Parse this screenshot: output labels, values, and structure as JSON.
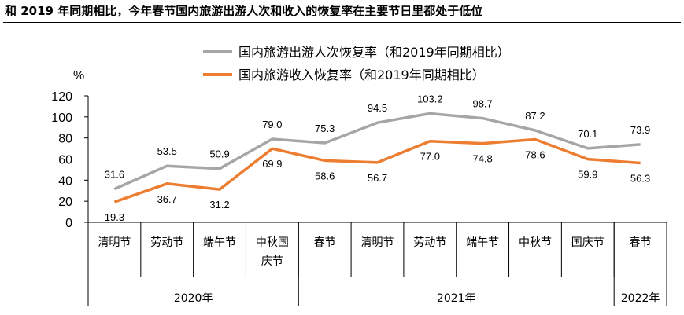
{
  "title": "和 2019 年同期相比，今年春节国内旅游出游人次和收入的恢复率在主要节日里都处于低位",
  "chart_data": {
    "type": "line",
    "ylabel": "%",
    "ylim": [
      0,
      120
    ],
    "yticks": [
      "0",
      "20",
      "40",
      "60",
      "80",
      "100",
      "120"
    ],
    "categories": [
      {
        "label": "清明节",
        "lines": [
          "清明节"
        ]
      },
      {
        "label": "劳动节",
        "lines": [
          "劳动节"
        ]
      },
      {
        "label": "端午节",
        "lines": [
          "端午节"
        ]
      },
      {
        "label": "中秋国庆节",
        "lines": [
          "中秋国",
          "庆节"
        ]
      },
      {
        "label": "春节",
        "lines": [
          "春节"
        ]
      },
      {
        "label": "清明节",
        "lines": [
          "清明节"
        ]
      },
      {
        "label": "劳动节",
        "lines": [
          "劳动节"
        ]
      },
      {
        "label": "端午节",
        "lines": [
          "端午节"
        ]
      },
      {
        "label": "中秋节",
        "lines": [
          "中秋节"
        ]
      },
      {
        "label": "国庆节",
        "lines": [
          "国庆节"
        ]
      },
      {
        "label": "春节",
        "lines": [
          "春节"
        ]
      }
    ],
    "groups": [
      {
        "label": "2020年",
        "start": 0,
        "end": 3
      },
      {
        "label": "2021年",
        "start": 4,
        "end": 9
      },
      {
        "label": "2022年",
        "start": 10,
        "end": 10
      }
    ],
    "series": [
      {
        "name": "国内旅游出游人次恢复率（和2019年同期相比）",
        "color": "#a6a6a6",
        "values": [
          31.6,
          53.5,
          50.9,
          79.0,
          75.3,
          94.5,
          103.2,
          98.7,
          87.2,
          70.1,
          73.9
        ],
        "labels": [
          "31.6",
          "53.5",
          "50.9",
          "79.0",
          "75.3",
          "94.5",
          "103.2",
          "98.7",
          "87.2",
          "70.1",
          "73.9"
        ],
        "label_position": "above"
      },
      {
        "name": "国内旅游收入恢复率（和2019年同期相比）",
        "color": "#ed7d31",
        "values": [
          19.3,
          36.7,
          31.2,
          69.9,
          58.6,
          56.7,
          77.0,
          74.8,
          78.6,
          59.9,
          56.3
        ],
        "labels": [
          "19.3",
          "36.7",
          "31.2",
          "69.9",
          "58.6",
          "56.7",
          "77.0",
          "74.8",
          "78.6",
          "59.9",
          "56.3"
        ],
        "label_position": "below"
      }
    ],
    "legend_position": "top-center",
    "grid": false
  }
}
